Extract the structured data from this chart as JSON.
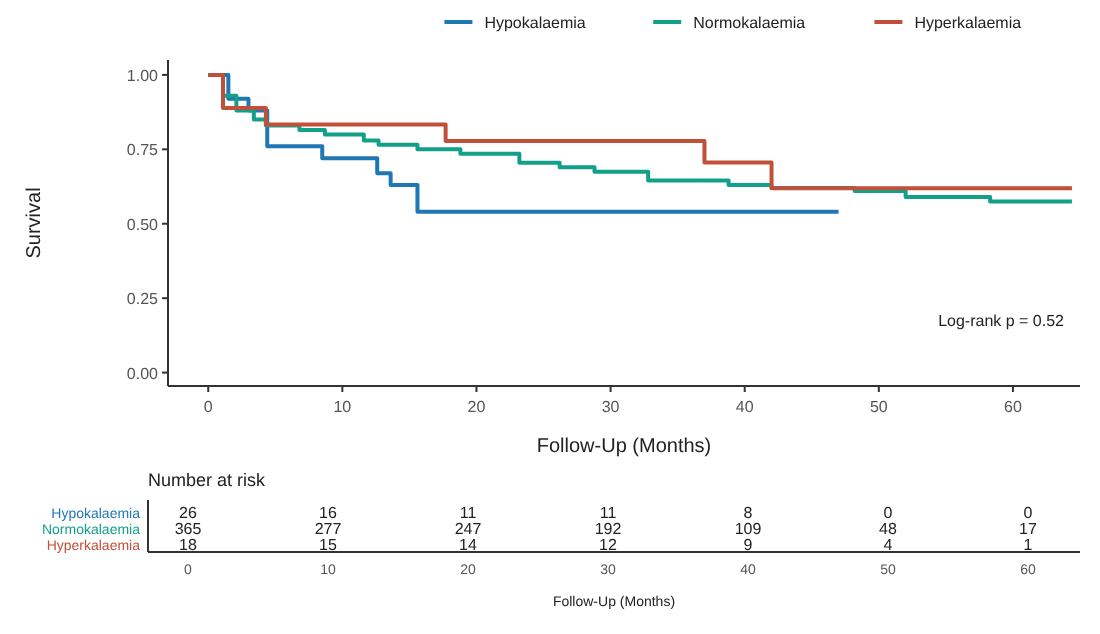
{
  "chart_data": [
    {
      "type": "step",
      "xlabel": "Follow-Up (Months)",
      "ylabel": "Survival",
      "legend": "top",
      "grid": false,
      "line_style": "solid",
      "marker": "none",
      "xlim": [
        -3,
        65
      ],
      "xticks": [
        0,
        10,
        20,
        30,
        40,
        50,
        60
      ],
      "ylim": [
        -0.045,
        1.05
      ],
      "yticks": [
        {
          "value": 0,
          "label": "0.00"
        },
        {
          "value": 0.25,
          "label": "0.25"
        },
        {
          "value": 0.5,
          "label": "0.50"
        },
        {
          "value": 0.75,
          "label": "0.75"
        },
        {
          "value": 1,
          "label": "1.00"
        }
      ],
      "annotations": [
        "Log-rank  p = 0.52"
      ],
      "series": [
        {
          "name": "Hypokalaemia",
          "color": "#1f78b4",
          "x": [
            0,
            1.5,
            3,
            4.4,
            8.5,
            12.6,
            13.6,
            15.6,
            47
          ],
          "values": [
            1,
            0.92,
            0.88,
            0.76,
            0.72,
            0.67,
            0.63,
            0.54,
            0.54
          ]
        },
        {
          "name": "Normokalaemia",
          "color": "#12a08a",
          "x": [
            0,
            1.1,
            2.1,
            3.4,
            4.3,
            6.8,
            8.7,
            11.6,
            12.7,
            15.6,
            18.8,
            23.2,
            26.2,
            28.8,
            32.8,
            38.8,
            42,
            48.2,
            52,
            58.3,
            64.4
          ],
          "values": [
            1,
            0.93,
            0.88,
            0.85,
            0.83,
            0.815,
            0.8,
            0.78,
            0.765,
            0.75,
            0.735,
            0.705,
            0.69,
            0.675,
            0.645,
            0.63,
            0.62,
            0.61,
            0.59,
            0.575,
            0.575
          ]
        },
        {
          "name": "Hyperkalaemia",
          "color": "#c0503a",
          "x": [
            0,
            1.1,
            4.3,
            17.7,
            37,
            42,
            64.4
          ],
          "values": [
            1,
            0.889,
            0.833,
            0.778,
            0.706,
            0.619,
            0.619
          ]
        }
      ]
    },
    {
      "type": "heatmap",
      "title": "Number at risk",
      "xlabel": "Follow-Up (Months)",
      "data_labels": true,
      "categories": [
        "0",
        "10",
        "20",
        "30",
        "40",
        "50",
        "60"
      ],
      "y_categories": [
        "Hypokalaemia",
        "Normokalaemia",
        "Hyperkalaemia"
      ],
      "cells": [
        [
          26,
          16,
          11,
          11,
          8,
          0,
          0
        ],
        [
          365,
          277,
          247,
          192,
          109,
          48,
          17
        ],
        [
          18,
          15,
          14,
          12,
          9,
          4,
          1
        ]
      ]
    }
  ]
}
